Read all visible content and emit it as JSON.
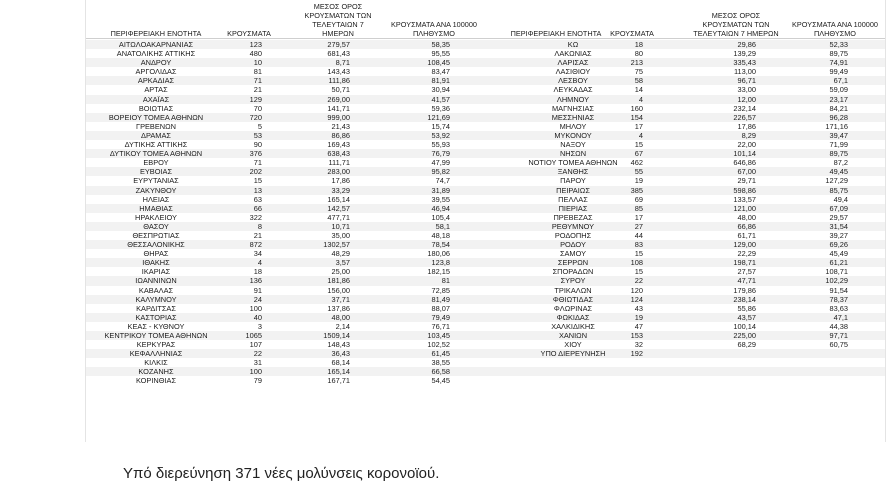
{
  "table": {
    "headers": {
      "region": "ΠΕΡΙΦΕΡΕΙΑΚΗ ΕΝΟΤΗΤΑ",
      "cases": "ΚΡΟΥΣΜΑΤΑ",
      "avg": [
        "ΜΕΣΟΣ ΟΡΟΣ",
        "ΚΡΟΥΣΜΑΤΩΝ ΤΩΝ",
        "ΤΕΛΕΥΤΑΙΩΝ 7 ΗΜΕΡΩΝ"
      ],
      "rate": [
        "ΚΡΟΥΣΜΑΤΑ ΑΝΑ 100000",
        "ΠΛΗΘΥΣΜΟ"
      ]
    },
    "left_rows": [
      [
        "ΑΙΤΩΛΟΑΚΑΡΝΑΝΙΑΣ",
        "123",
        "279,57",
        "58,35"
      ],
      [
        "ΑΝΑΤΟΛΙΚΗΣ ΑΤΤΙΚΗΣ",
        "480",
        "681,43",
        "95,55"
      ],
      [
        "ΑΝΔΡΟΥ",
        "10",
        "8,71",
        "108,45"
      ],
      [
        "ΑΡΓΟΛΙΔΑΣ",
        "81",
        "143,43",
        "83,47"
      ],
      [
        "ΑΡΚΑΔΙΑΣ",
        "71",
        "111,86",
        "81,91"
      ],
      [
        "ΑΡΤΑΣ",
        "21",
        "50,71",
        "30,94"
      ],
      [
        "ΑΧΑΪΑΣ",
        "129",
        "269,00",
        "41,57"
      ],
      [
        "ΒΟΙΩΤΙΑΣ",
        "70",
        "141,71",
        "59,36"
      ],
      [
        "ΒΟΡΕΙΟΥ ΤΟΜΕΑ ΑΘΗΝΩΝ",
        "720",
        "999,00",
        "121,69"
      ],
      [
        "ΓΡΕΒΕΝΩΝ",
        "5",
        "21,43",
        "15,74"
      ],
      [
        "ΔΡΑΜΑΣ",
        "53",
        "86,86",
        "53,92"
      ],
      [
        "ΔΥΤΙΚΗΣ ΑΤΤΙΚΗΣ",
        "90",
        "169,43",
        "55,93"
      ],
      [
        "ΔΥΤΙΚΟΥ ΤΟΜΕΑ ΑΘΗΝΩΝ",
        "376",
        "638,43",
        "76,79"
      ],
      [
        "ΕΒΡΟΥ",
        "71",
        "111,71",
        "47,99"
      ],
      [
        "ΕΥΒΟΙΑΣ",
        "202",
        "283,00",
        "95,82"
      ],
      [
        "ΕΥΡΥΤΑΝΙΑΣ",
        "15",
        "17,86",
        "74,7"
      ],
      [
        "ΖΑΚΥΝΘΟΥ",
        "13",
        "33,29",
        "31,89"
      ],
      [
        "ΗΛΕΙΑΣ",
        "63",
        "165,14",
        "39,55"
      ],
      [
        "ΗΜΑΘΙΑΣ",
        "66",
        "142,57",
        "46,94"
      ],
      [
        "ΗΡΑΚΛΕΙΟΥ",
        "322",
        "477,71",
        "105,4"
      ],
      [
        "ΘΑΣΟΥ",
        "8",
        "10,71",
        "58,1"
      ],
      [
        "ΘΕΣΠΡΩΤΙΑΣ",
        "21",
        "35,00",
        "48,18"
      ],
      [
        "ΘΕΣΣΑΛΟΝΙΚΗΣ",
        "872",
        "1302,57",
        "78,54"
      ],
      [
        "ΘΗΡΑΣ",
        "34",
        "48,29",
        "180,06"
      ],
      [
        "ΙΘΑΚΗΣ",
        "4",
        "3,57",
        "123,8"
      ],
      [
        "ΙΚΑΡΙΑΣ",
        "18",
        "25,00",
        "182,15"
      ],
      [
        "ΙΩΑΝΝΙΝΩΝ",
        "136",
        "181,86",
        "81"
      ],
      [
        "ΚΑΒΑΛΑΣ",
        "91",
        "156,00",
        "72,85"
      ],
      [
        "ΚΑΛΥΜΝΟΥ",
        "24",
        "37,71",
        "81,49"
      ],
      [
        "ΚΑΡΔΙΤΣΑΣ",
        "100",
        "137,86",
        "88,07"
      ],
      [
        "ΚΑΣΤΟΡΙΑΣ",
        "40",
        "48,00",
        "79,49"
      ],
      [
        "ΚΕΑΣ - ΚΥΘΝΟΥ",
        "3",
        "2,14",
        "76,71"
      ],
      [
        "ΚΕΝΤΡΙΚΟΥ ΤΟΜΕΑ ΑΘΗΝΩΝ",
        "1065",
        "1509,14",
        "103,45"
      ],
      [
        "ΚΕΡΚΥΡΑΣ",
        "107",
        "148,43",
        "102,52"
      ],
      [
        "ΚΕΦΑΛΛΗΝΙΑΣ",
        "22",
        "36,43",
        "61,45"
      ],
      [
        "ΚΙΛΚΙΣ",
        "31",
        "68,14",
        "38,55"
      ],
      [
        "ΚΟΖΑΝΗΣ",
        "100",
        "165,14",
        "66,58"
      ],
      [
        "ΚΟΡΙΝΘΙΑΣ",
        "79",
        "167,71",
        "54,45"
      ]
    ],
    "right_rows": [
      [
        "ΚΩ",
        "18",
        "29,86",
        "52,33"
      ],
      [
        "ΛΑΚΩΝΙΑΣ",
        "80",
        "139,29",
        "89,75"
      ],
      [
        "ΛΑΡΙΣΑΣ",
        "213",
        "335,43",
        "74,91"
      ],
      [
        "ΛΑΣΙΘΙΟΥ",
        "75",
        "113,00",
        "99,49"
      ],
      [
        "ΛΕΣΒΟΥ",
        "58",
        "96,71",
        "67,1"
      ],
      [
        "ΛΕΥΚΑΔΑΣ",
        "14",
        "33,00",
        "59,09"
      ],
      [
        "ΛΗΜΝΟΥ",
        "4",
        "12,00",
        "23,17"
      ],
      [
        "ΜΑΓΝΗΣΙΑΣ",
        "160",
        "232,14",
        "84,21"
      ],
      [
        "ΜΕΣΣΗΝΙΑΣ",
        "154",
        "226,57",
        "96,28"
      ],
      [
        "ΜΗΛΟΥ",
        "17",
        "17,86",
        "171,16"
      ],
      [
        "ΜΥΚΟΝΟΥ",
        "4",
        "8,29",
        "39,47"
      ],
      [
        "ΝΑΞΟΥ",
        "15",
        "22,00",
        "71,99"
      ],
      [
        "ΝΗΣΩΝ",
        "67",
        "101,14",
        "89,75"
      ],
      [
        "ΝΟΤΙΟΥ ΤΟΜΕΑ ΑΘΗΝΩΝ",
        "462",
        "646,86",
        "87,2"
      ],
      [
        "ΞΑΝΘΗΣ",
        "55",
        "67,00",
        "49,45"
      ],
      [
        "ΠΑΡΟΥ",
        "19",
        "29,71",
        "127,29"
      ],
      [
        "ΠΕΙΡΑΙΩΣ",
        "385",
        "598,86",
        "85,75"
      ],
      [
        "ΠΕΛΛΑΣ",
        "69",
        "133,57",
        "49,4"
      ],
      [
        "ΠΙΕΡΙΑΣ",
        "85",
        "121,00",
        "67,09"
      ],
      [
        "ΠΡΕΒΕΖΑΣ",
        "17",
        "48,00",
        "29,57"
      ],
      [
        "ΡΕΘΥΜΝΟΥ",
        "27",
        "66,86",
        "31,54"
      ],
      [
        "ΡΟΔΟΠΗΣ",
        "44",
        "61,71",
        "39,27"
      ],
      [
        "ΡΟΔΟΥ",
        "83",
        "129,00",
        "69,26"
      ],
      [
        "ΣΑΜΟΥ",
        "15",
        "22,29",
        "45,49"
      ],
      [
        "ΣΕΡΡΩΝ",
        "108",
        "198,71",
        "61,21"
      ],
      [
        "ΣΠΟΡΑΔΩΝ",
        "15",
        "27,57",
        "108,71"
      ],
      [
        "ΣΥΡΟΥ",
        "22",
        "47,71",
        "102,29"
      ],
      [
        "ΤΡΙΚΑΛΩΝ",
        "120",
        "179,86",
        "91,54"
      ],
      [
        "ΦΘΙΩΤΙΔΑΣ",
        "124",
        "238,14",
        "78,37"
      ],
      [
        "ΦΛΩΡΙΝΑΣ",
        "43",
        "55,86",
        "83,63"
      ],
      [
        "ΦΩΚΙΔΑΣ",
        "19",
        "43,57",
        "47,1"
      ],
      [
        "ΧΑΛΚΙΔΙΚΗΣ",
        "47",
        "100,14",
        "44,38"
      ],
      [
        "ΧΑΝΙΩΝ",
        "153",
        "225,00",
        "97,71"
      ],
      [
        "ΧΙΟΥ",
        "32",
        "68,29",
        "60,75"
      ],
      [
        "ΥΠΟ ΔΙΕΡΕΥΝΗΣΗ",
        "192",
        "",
        ""
      ],
      [
        "",
        "",
        "",
        ""
      ],
      [
        "",
        "",
        "",
        ""
      ],
      [
        "",
        "",
        "",
        ""
      ]
    ]
  },
  "caption": "Υπό διερεύνηση 371 νέες μολύνσεις κορονοϊού."
}
